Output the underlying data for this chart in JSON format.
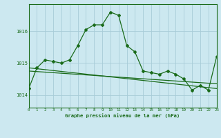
{
  "title": "Graphe pression niveau de la mer (hPa)",
  "background_color": "#cce8f0",
  "line_color": "#1a6b1a",
  "grid_color": "#a8ccd8",
  "x_min": 0,
  "x_max": 23,
  "y_min": 1013.6,
  "y_max": 1016.85,
  "yticks": [
    1014,
    1015,
    1016
  ],
  "xticks": [
    0,
    1,
    2,
    3,
    4,
    5,
    6,
    7,
    8,
    9,
    10,
    11,
    12,
    13,
    14,
    15,
    16,
    17,
    18,
    19,
    20,
    21,
    22,
    23
  ],
  "series1_x": [
    0,
    1,
    2,
    3,
    4,
    5,
    6,
    7,
    8,
    9,
    10,
    11,
    12,
    13,
    14,
    15,
    16,
    17,
    18,
    19,
    20,
    21,
    22,
    23
  ],
  "series1_y": [
    1014.2,
    1014.85,
    1015.1,
    1015.05,
    1015.0,
    1015.1,
    1015.55,
    1016.05,
    1016.2,
    1016.2,
    1016.6,
    1016.5,
    1015.55,
    1015.35,
    1014.75,
    1014.7,
    1014.65,
    1014.75,
    1014.65,
    1014.5,
    1014.15,
    1014.3,
    1014.15,
    1015.2
  ],
  "series2_x": [
    0,
    23
  ],
  "series2_y": [
    1014.85,
    1014.2
  ],
  "series3_x": [
    0,
    23
  ],
  "series3_y": [
    1014.75,
    1014.35
  ]
}
